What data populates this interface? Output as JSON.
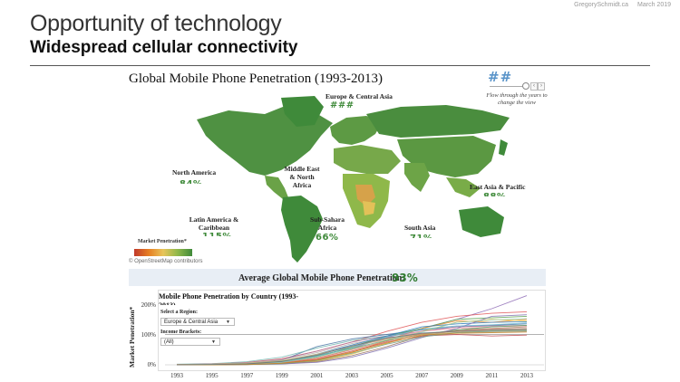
{
  "slide": {
    "author": "GregorySchmidt.ca",
    "date": "March 2019",
    "heading": "Opportunity of technology",
    "subheading": "Widespread cellular connectivity"
  },
  "map": {
    "title": "Global Mobile Phone Penetration (1993-2013)",
    "year_display": "##",
    "flow_note": "Flow through the years to change the view",
    "pager_prev": "‹",
    "pager_next": "›",
    "legend_title": "Market Penetration*",
    "attribution": "© OpenStreetMap contributors",
    "regions": [
      {
        "name": "Europe & Central Asia",
        "value": "###"
      },
      {
        "name": "North America",
        "value": "84%"
      },
      {
        "name": "Middle East & North Africa",
        "value": ""
      },
      {
        "name": "Latin America & Caribbean",
        "value": "115%"
      },
      {
        "name": "Sub-Sahara Africa",
        "value": "66%"
      },
      {
        "name": "South Asia",
        "value": "71%"
      },
      {
        "name": "East Asia & Pacific",
        "value": "88%"
      }
    ],
    "colors": {
      "high": "#3f8a3a",
      "mid": "#8fb84a",
      "low": "#c0392b",
      "ocean": "#ffffff"
    }
  },
  "average": {
    "label": "Average Global Mobile Phone Penetration:",
    "value": "93%"
  },
  "country_chart": {
    "title": "Mobile Phone Penetration by Country (1993-",
    "title_cut": "2013)",
    "region_label": "Select a Region:",
    "region_value": "Europe & Central Asia",
    "income_label": "Income Brackets:",
    "income_value": "(All)",
    "caret": "▼"
  },
  "chart_data": {
    "type": "line",
    "title": "Mobile Phone Penetration by Country (1993-2013)",
    "ylabel": "Market Penetration*",
    "xlabel": "",
    "x": [
      1993,
      1995,
      1997,
      1999,
      2001,
      2003,
      2005,
      2007,
      2009,
      2011,
      2013
    ],
    "x_ticks": [
      "1993",
      "1995",
      "1997",
      "1999",
      "2001",
      "2003",
      "2005",
      "2007",
      "2009",
      "2011",
      "2013"
    ],
    "y_ticks": [
      "0%",
      "100%",
      "200%"
    ],
    "ylim": [
      0,
      230
    ],
    "reference_line": 100,
    "series": [
      {
        "color": "#8e6bb5",
        "values": [
          1,
          2,
          5,
          12,
          30,
          55,
          90,
          120,
          150,
          185,
          228
        ]
      },
      {
        "color": "#e15759",
        "values": [
          1,
          3,
          8,
          20,
          45,
          75,
          110,
          140,
          160,
          170,
          175
        ]
      },
      {
        "color": "#4e79a7",
        "values": [
          0,
          1,
          4,
          15,
          60,
          85,
          100,
          115,
          125,
          130,
          135
        ]
      },
      {
        "color": "#59a14f",
        "values": [
          0,
          1,
          3,
          8,
          25,
          60,
          95,
          120,
          150,
          155,
          160
        ]
      },
      {
        "color": "#f28e2b",
        "values": [
          0,
          1,
          2,
          5,
          15,
          40,
          80,
          120,
          145,
          140,
          150
        ]
      },
      {
        "color": "#76b7b2",
        "values": [
          2,
          4,
          10,
          25,
          55,
          80,
          95,
          105,
          110,
          115,
          118
        ]
      },
      {
        "color": "#edc948",
        "values": [
          0,
          0,
          1,
          4,
          12,
          35,
          70,
          110,
          140,
          150,
          145
        ]
      },
      {
        "color": "#b07aa1",
        "values": [
          1,
          3,
          7,
          18,
          45,
          75,
          95,
          110,
          125,
          128,
          130
        ]
      },
      {
        "color": "#ff9da7",
        "values": [
          0,
          1,
          2,
          6,
          20,
          50,
          85,
          110,
          120,
          125,
          128
        ]
      },
      {
        "color": "#9c755f",
        "values": [
          0,
          0,
          1,
          3,
          10,
          30,
          60,
          95,
          115,
          120,
          125
        ]
      },
      {
        "color": "#bab0ac",
        "values": [
          1,
          2,
          6,
          16,
          40,
          70,
          90,
          100,
          105,
          108,
          110
        ]
      },
      {
        "color": "#2f7ebc",
        "values": [
          0,
          1,
          3,
          10,
          35,
          65,
          95,
          125,
          135,
          140,
          142
        ]
      },
      {
        "color": "#c44e52",
        "values": [
          0,
          0,
          2,
          6,
          18,
          45,
          75,
          95,
          100,
          95,
          98
        ]
      },
      {
        "color": "#55a868",
        "values": [
          0,
          1,
          4,
          12,
          30,
          55,
          80,
          100,
          115,
          125,
          130
        ]
      },
      {
        "color": "#8172b2",
        "values": [
          0,
          0,
          1,
          3,
          8,
          25,
          55,
          90,
          120,
          160,
          165
        ]
      },
      {
        "color": "#ccb974",
        "values": [
          1,
          2,
          5,
          13,
          35,
          60,
          85,
          100,
          108,
          112,
          115
        ]
      },
      {
        "color": "#64b5cd",
        "values": [
          0,
          1,
          3,
          9,
          28,
          58,
          92,
          118,
          128,
          132,
          138
        ]
      },
      {
        "color": "#d48265",
        "values": [
          0,
          0,
          2,
          7,
          22,
          50,
          78,
          102,
          112,
          118,
          120
        ]
      },
      {
        "color": "#91c7ae",
        "values": [
          0,
          1,
          2,
          8,
          26,
          52,
          82,
          108,
          140,
          148,
          152
        ]
      },
      {
        "color": "#749f83",
        "values": [
          0,
          0,
          1,
          4,
          14,
          38,
          68,
          92,
          106,
          110,
          112
        ]
      },
      {
        "color": "#ca8622",
        "values": [
          0,
          0,
          1,
          5,
          16,
          42,
          72,
          98,
          104,
          106,
          108
        ]
      },
      {
        "color": "#6e7074",
        "values": [
          0,
          1,
          3,
          11,
          32,
          62,
          88,
          104,
          110,
          114,
          116
        ]
      }
    ]
  }
}
